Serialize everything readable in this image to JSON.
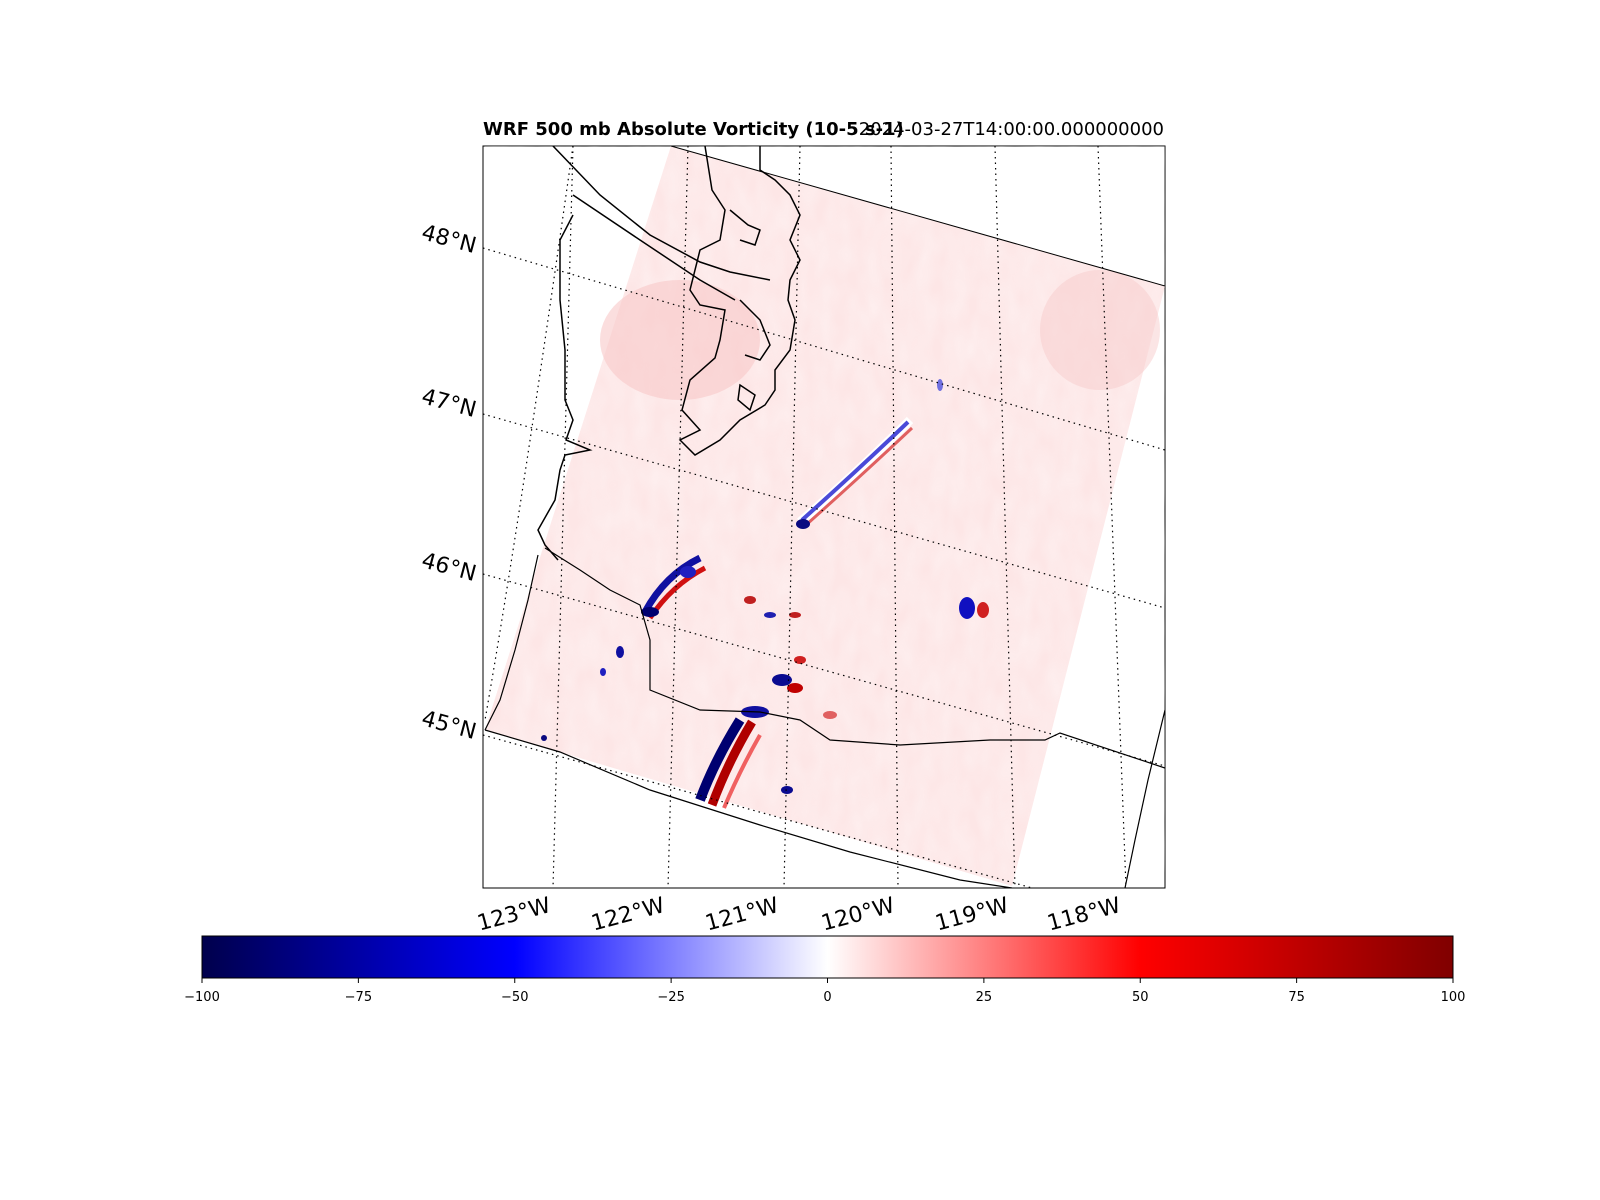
{
  "title": "WRF 500 mb Absolute Vorticity (10-5 s-1)",
  "timestamp": "2024-03-27T14:00:00.000000000",
  "lat_labels": [
    "48°N",
    "47°N",
    "46°N",
    "45°N"
  ],
  "lon_labels": [
    "123°W",
    "122°W",
    "121°W",
    "120°W",
    "119°W",
    "118°W"
  ],
  "colorbar": {
    "colormap": "seismic",
    "vmin": -100,
    "vmax": 100,
    "ticks": [
      "−100",
      "−75",
      "−50",
      "−25",
      "0",
      "25",
      "50",
      "75",
      "100"
    ],
    "tick_values": [
      -100,
      -75,
      -50,
      -25,
      0,
      25,
      50,
      75,
      100
    ],
    "colors": [
      "#00004c",
      "#0000ff",
      "#ffffff",
      "#ff0000",
      "#800000"
    ]
  },
  "map_extent": {
    "lon_min": -123.6,
    "lon_max": -117.5,
    "lat_min": 44.0,
    "lat_max": 48.7
  },
  "colors": {
    "background_field": "#fde4e4",
    "frame": "#000000",
    "coastline": "#000000",
    "gridlines": "#000000"
  }
}
